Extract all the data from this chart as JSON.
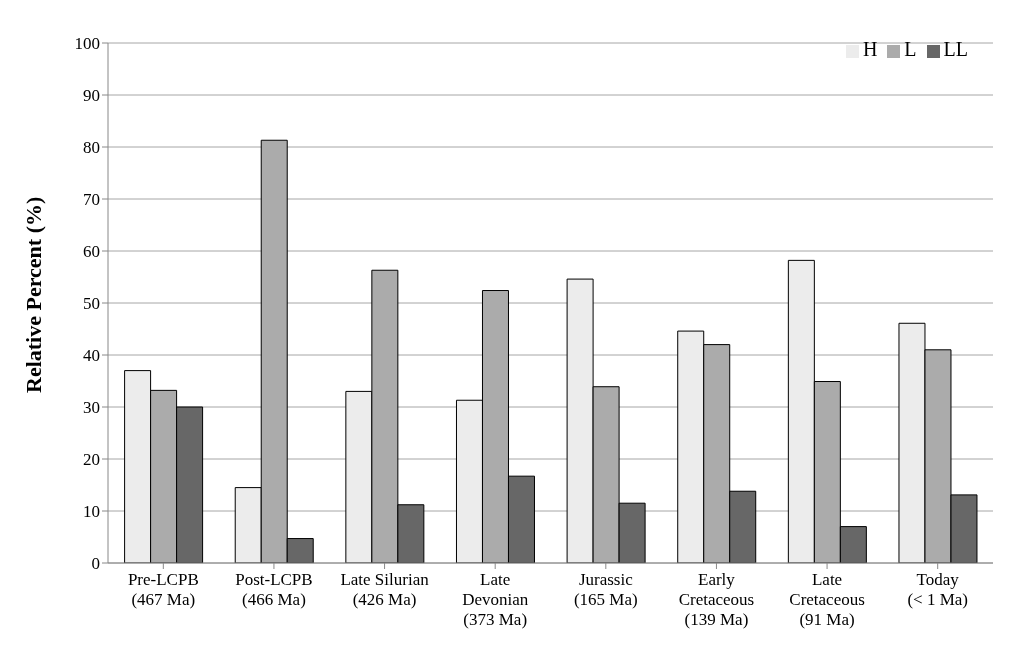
{
  "chart_data": {
    "type": "bar",
    "ylabel": "Relative Percent (%)",
    "categories": [
      "Pre-LCPB\n(467 Ma)",
      "Post-LCPB\n(466 Ma)",
      "Late Silurian\n(426 Ma)",
      "Late\nDevonian\n(373 Ma)",
      "Jurassic\n(165 Ma)",
      "Early\nCretaceous\n(139 Ma)",
      "Late\nCretaceous\n(91 Ma)",
      "Today\n(< 1 Ma)"
    ],
    "series": [
      {
        "name": "H",
        "color": "#ececec",
        "values": [
          37,
          14.5,
          33,
          31.3,
          54.6,
          44.6,
          58.2,
          46.1
        ]
      },
      {
        "name": "L",
        "color": "#ababab",
        "values": [
          33.2,
          81.3,
          56.3,
          52.4,
          33.9,
          42,
          34.9,
          41
        ]
      },
      {
        "name": "LL",
        "color": "#676767",
        "values": [
          30,
          4.7,
          11.2,
          16.7,
          11.5,
          13.8,
          7,
          13.1
        ]
      }
    ],
    "ylim": [
      0,
      100
    ],
    "yticks": [
      0,
      10,
      20,
      30,
      40,
      50,
      60,
      70,
      80,
      90,
      100
    ],
    "grid": "y",
    "legend": "top right"
  }
}
